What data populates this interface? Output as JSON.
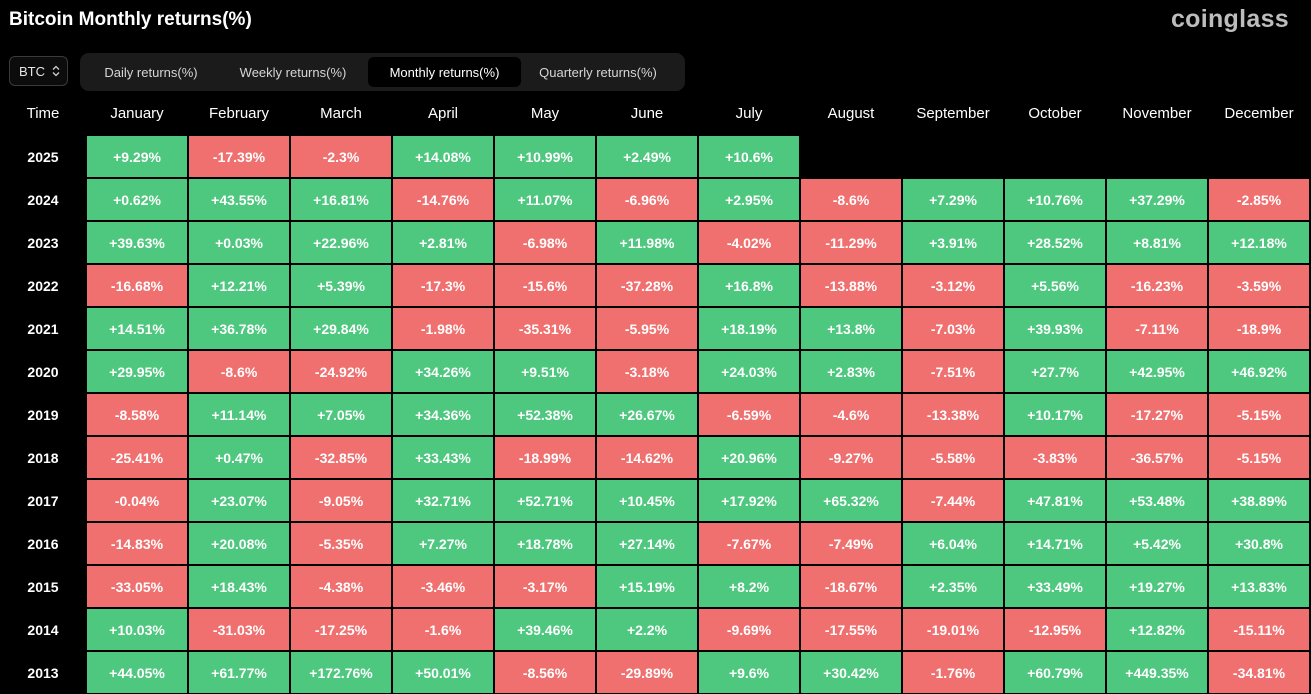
{
  "title": "Bitcoin Monthly returns(%)",
  "logo": "coinglass",
  "asset_select": {
    "value": "BTC",
    "icon": "chevron-up-down-icon"
  },
  "tabs": [
    {
      "label": "Daily returns(%)",
      "active": false
    },
    {
      "label": "Weekly returns(%)",
      "active": false
    },
    {
      "label": "Monthly returns(%)",
      "active": true
    },
    {
      "label": "Quarterly returns(%)",
      "active": false
    }
  ],
  "colors": {
    "positive": "#4ec77f",
    "negative": "#f07070",
    "background": "#000000"
  },
  "table": {
    "time_header": "Time",
    "months": [
      "January",
      "February",
      "March",
      "April",
      "May",
      "June",
      "July",
      "August",
      "September",
      "October",
      "November",
      "December"
    ],
    "rows": [
      {
        "year": "2025",
        "values": [
          "+9.29%",
          "-17.39%",
          "-2.3%",
          "+14.08%",
          "+10.99%",
          "+2.49%",
          "+10.6%",
          "",
          "",
          "",
          "",
          ""
        ]
      },
      {
        "year": "2024",
        "values": [
          "+0.62%",
          "+43.55%",
          "+16.81%",
          "-14.76%",
          "+11.07%",
          "-6.96%",
          "+2.95%",
          "-8.6%",
          "+7.29%",
          "+10.76%",
          "+37.29%",
          "-2.85%"
        ]
      },
      {
        "year": "2023",
        "values": [
          "+39.63%",
          "+0.03%",
          "+22.96%",
          "+2.81%",
          "-6.98%",
          "+11.98%",
          "-4.02%",
          "-11.29%",
          "+3.91%",
          "+28.52%",
          "+8.81%",
          "+12.18%"
        ]
      },
      {
        "year": "2022",
        "values": [
          "-16.68%",
          "+12.21%",
          "+5.39%",
          "-17.3%",
          "-15.6%",
          "-37.28%",
          "+16.8%",
          "-13.88%",
          "-3.12%",
          "+5.56%",
          "-16.23%",
          "-3.59%"
        ]
      },
      {
        "year": "2021",
        "values": [
          "+14.51%",
          "+36.78%",
          "+29.84%",
          "-1.98%",
          "-35.31%",
          "-5.95%",
          "+18.19%",
          "+13.8%",
          "-7.03%",
          "+39.93%",
          "-7.11%",
          "-18.9%"
        ]
      },
      {
        "year": "2020",
        "values": [
          "+29.95%",
          "-8.6%",
          "-24.92%",
          "+34.26%",
          "+9.51%",
          "-3.18%",
          "+24.03%",
          "+2.83%",
          "-7.51%",
          "+27.7%",
          "+42.95%",
          "+46.92%"
        ]
      },
      {
        "year": "2019",
        "values": [
          "-8.58%",
          "+11.14%",
          "+7.05%",
          "+34.36%",
          "+52.38%",
          "+26.67%",
          "-6.59%",
          "-4.6%",
          "-13.38%",
          "+10.17%",
          "-17.27%",
          "-5.15%"
        ]
      },
      {
        "year": "2018",
        "values": [
          "-25.41%",
          "+0.47%",
          "-32.85%",
          "+33.43%",
          "-18.99%",
          "-14.62%",
          "+20.96%",
          "-9.27%",
          "-5.58%",
          "-3.83%",
          "-36.57%",
          "-5.15%"
        ]
      },
      {
        "year": "2017",
        "values": [
          "-0.04%",
          "+23.07%",
          "-9.05%",
          "+32.71%",
          "+52.71%",
          "+10.45%",
          "+17.92%",
          "+65.32%",
          "-7.44%",
          "+47.81%",
          "+53.48%",
          "+38.89%"
        ]
      },
      {
        "year": "2016",
        "values": [
          "-14.83%",
          "+20.08%",
          "-5.35%",
          "+7.27%",
          "+18.78%",
          "+27.14%",
          "-7.67%",
          "-7.49%",
          "+6.04%",
          "+14.71%",
          "+5.42%",
          "+30.8%"
        ]
      },
      {
        "year": "2015",
        "values": [
          "-33.05%",
          "+18.43%",
          "-4.38%",
          "-3.46%",
          "-3.17%",
          "+15.19%",
          "+8.2%",
          "-18.67%",
          "+2.35%",
          "+33.49%",
          "+19.27%",
          "+13.83%"
        ]
      },
      {
        "year": "2014",
        "values": [
          "+10.03%",
          "-31.03%",
          "-17.25%",
          "-1.6%",
          "+39.46%",
          "+2.2%",
          "-9.69%",
          "-17.55%",
          "-19.01%",
          "-12.95%",
          "+12.82%",
          "-15.11%"
        ]
      },
      {
        "year": "2013",
        "values": [
          "+44.05%",
          "+61.77%",
          "+172.76%",
          "+50.01%",
          "-8.56%",
          "-29.89%",
          "+9.6%",
          "+30.42%",
          "-1.76%",
          "+60.79%",
          "+449.35%",
          "-34.81%"
        ]
      }
    ]
  }
}
